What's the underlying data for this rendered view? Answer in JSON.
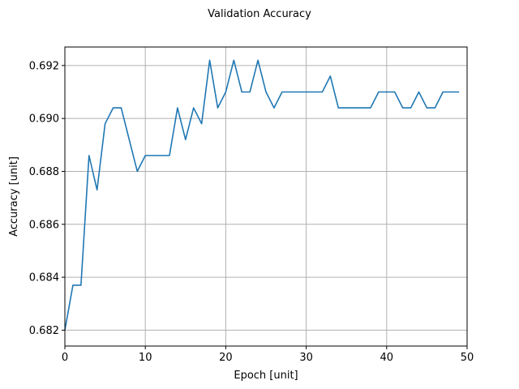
{
  "chart_data": {
    "type": "line",
    "title": "Validation Accuracy",
    "xlabel": "Epoch [unit]",
    "ylabel": "Accuracy [unit]",
    "xlim": [
      0,
      50
    ],
    "ylim": [
      0.6814,
      0.6927
    ],
    "grid": true,
    "line_color": "#1f77b4",
    "grid_color": "#b0b0b0",
    "xticks": [
      0,
      10,
      20,
      30,
      40,
      50
    ],
    "xtick_labels": [
      "0",
      "10",
      "20",
      "30",
      "40",
      "50"
    ],
    "yticks": [
      0.682,
      0.684,
      0.686,
      0.688,
      0.69,
      0.692
    ],
    "ytick_labels": [
      "0.682",
      "0.684",
      "0.686",
      "0.688",
      "0.690",
      "0.692"
    ],
    "series": [
      {
        "x": [
          0,
          1,
          2,
          3,
          4,
          5,
          6,
          7,
          8,
          9,
          10,
          11,
          12,
          13,
          14,
          15,
          16,
          17,
          18,
          19,
          20,
          21,
          22,
          23,
          24,
          25,
          26,
          27,
          28,
          29,
          30,
          31,
          32,
          33,
          34,
          35,
          36,
          37,
          38,
          39,
          40,
          41,
          42,
          43,
          44,
          45,
          46,
          47,
          48,
          49
        ],
        "values": [
          0.682,
          0.6837,
          0.6837,
          0.6886,
          0.6873,
          0.6898,
          0.6904,
          0.6904,
          0.6892,
          0.688,
          0.6886,
          0.6886,
          0.6886,
          0.6886,
          0.6904,
          0.6892,
          0.6904,
          0.6898,
          0.6922,
          0.6904,
          0.691,
          0.6922,
          0.691,
          0.691,
          0.6922,
          0.691,
          0.6904,
          0.691,
          0.691,
          0.691,
          0.691,
          0.691,
          0.691,
          0.6916,
          0.6904,
          0.6904,
          0.6904,
          0.6904,
          0.6904,
          0.691,
          0.691,
          0.691,
          0.6904,
          0.6904,
          0.691,
          0.6904,
          0.6904,
          0.691,
          0.691,
          0.691
        ]
      }
    ]
  }
}
